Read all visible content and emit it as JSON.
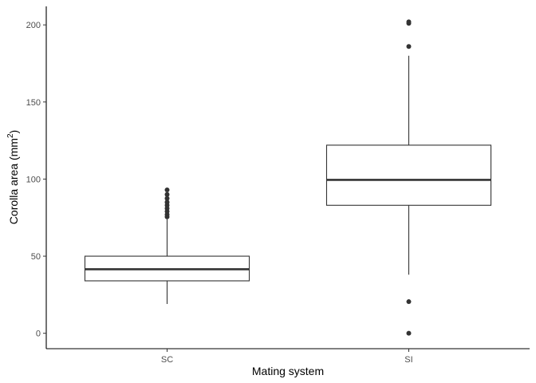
{
  "chart_data": {
    "type": "boxplot",
    "xlabel": "Mating system",
    "ylabel_main": "Corolla area (mm",
    "ylabel_sup": "2",
    "ylabel_close": ")",
    "ylim": [
      -10,
      212
    ],
    "yticks": [
      0,
      50,
      100,
      150,
      200
    ],
    "yticklabels": [
      "0",
      "50",
      "100",
      "150",
      "200"
    ],
    "categories": [
      "SC",
      "SI"
    ],
    "boxes": [
      {
        "category": "SC",
        "whisker_low": 19,
        "q1": 34,
        "median": 41.5,
        "q3": 50,
        "whisker_high": 74,
        "outliers": [
          75.5,
          77,
          79,
          81,
          83,
          85,
          87.5,
          90,
          93
        ]
      },
      {
        "category": "SI",
        "whisker_low": 38,
        "q1": 83,
        "median": 99.5,
        "q3": 122,
        "whisker_high": 180,
        "outliers": [
          0,
          20.5,
          186,
          201,
          202
        ]
      }
    ],
    "grid": false,
    "legend": "none"
  }
}
